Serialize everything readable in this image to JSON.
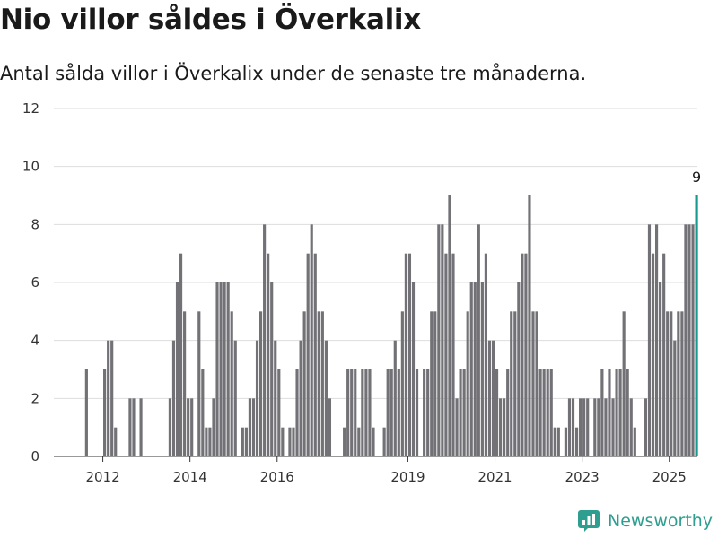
{
  "chart_data": {
    "type": "bar",
    "title": "Nio villor såldes i Överkalix",
    "subtitle": "Antal sålda villor i Överkalix under de senaste tre månaderna.",
    "xlabel": "",
    "ylabel": "",
    "ylim": [
      0,
      12
    ],
    "yticks": [
      0,
      2,
      4,
      6,
      8,
      10,
      12
    ],
    "x_tick_labels": [
      "2012",
      "2014",
      "2016",
      "2019",
      "2021",
      "2023",
      "2025"
    ],
    "x_tick_years": [
      2012,
      2014,
      2016,
      2019,
      2021,
      2023,
      2025
    ],
    "x_start_year": 2011.5,
    "grid": true,
    "bar_color": "#727176",
    "highlight_color": "#169a8e",
    "highlight_label": "9",
    "series": [
      {
        "values": [
          0,
          3,
          0,
          0,
          0,
          0,
          3,
          4,
          4,
          1,
          0,
          0,
          0,
          2,
          2,
          0,
          2,
          0,
          0,
          0,
          0,
          0,
          0,
          0,
          2,
          4,
          6,
          7,
          5,
          2,
          2,
          0,
          5,
          3,
          1,
          1,
          2,
          6,
          6,
          6,
          6,
          5,
          4,
          0,
          1,
          1,
          2,
          2,
          4,
          5,
          8,
          7,
          6,
          4,
          3,
          1,
          0,
          1,
          1,
          3,
          4,
          5,
          7,
          8,
          7,
          5,
          5,
          4,
          2,
          0,
          0,
          0,
          1,
          3,
          3,
          3,
          1,
          3,
          3,
          3,
          1,
          0,
          0,
          1,
          3,
          3,
          4,
          3,
          5,
          7,
          7,
          6,
          3,
          0,
          3,
          3,
          5,
          5,
          8,
          8,
          7,
          9,
          7,
          2,
          3,
          3,
          5,
          6,
          6,
          8,
          6,
          7,
          4,
          4,
          3,
          2,
          2,
          3,
          5,
          5,
          6,
          7,
          7,
          9,
          5,
          5,
          3,
          3,
          3,
          3,
          1,
          1,
          0,
          1,
          2,
          2,
          1,
          2,
          2,
          2,
          0,
          2,
          2,
          3,
          2,
          3,
          2,
          3,
          3,
          5,
          3,
          2,
          1,
          0,
          0,
          2,
          8,
          7,
          8,
          6,
          7,
          5,
          5,
          4,
          5,
          5,
          8,
          8,
          8,
          9
        ]
      }
    ]
  },
  "brand": {
    "name": "Newsworthy"
  }
}
